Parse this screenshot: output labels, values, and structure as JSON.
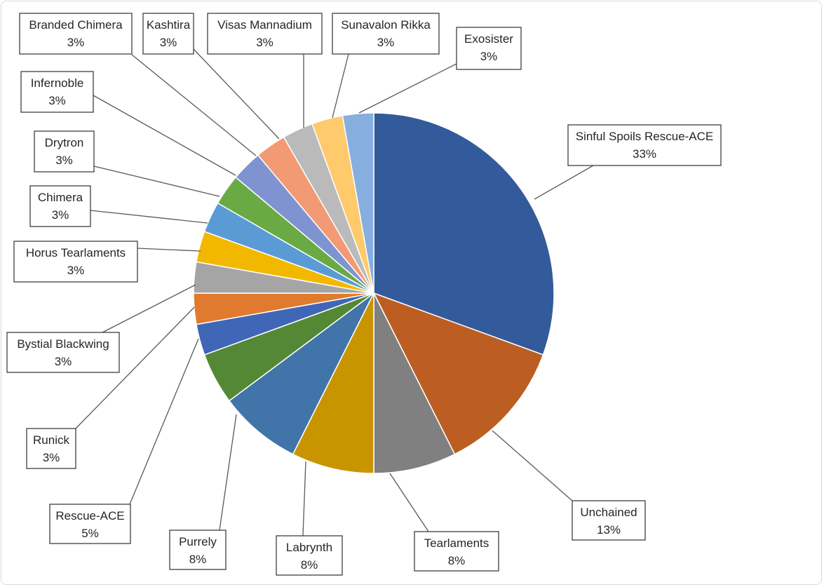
{
  "chart_data": {
    "type": "pie",
    "title": "",
    "start_angle_deg": 0,
    "direction": "clockwise",
    "slices": [
      {
        "name": "Sinful Spoils Rescue-ACE",
        "value": 33,
        "label": "33%",
        "color": "#335A9A"
      },
      {
        "name": "Unchained",
        "value": 13,
        "label": "13%",
        "color": "#BC5E22"
      },
      {
        "name": "Tearlaments",
        "value": 8,
        "label": "8%",
        "color": "#808080"
      },
      {
        "name": "Labrynth",
        "value": 8,
        "label": "8%",
        "color": "#C89500"
      },
      {
        "name": "Purrely",
        "value": 8,
        "label": "8%",
        "color": "#4174A8"
      },
      {
        "name": "Rescue-ACE",
        "value": 5,
        "label": "5%",
        "color": "#548835"
      },
      {
        "name": "Runick",
        "value": 3,
        "label": "3%",
        "color": "#4066B8"
      },
      {
        "name": "Bystial Blackwing",
        "value": 3,
        "label": "3%",
        "color": "#E07A2E"
      },
      {
        "name": "Horus Tearlaments",
        "value": 3,
        "label": "3%",
        "color": "#A5A5A5"
      },
      {
        "name": "Chimera",
        "value": 3,
        "label": "3%",
        "color": "#F2B800"
      },
      {
        "name": "Drytron",
        "value": 3,
        "label": "3%",
        "color": "#5B9BD5"
      },
      {
        "name": "Infernoble",
        "value": 3,
        "label": "3%",
        "color": "#6AAA45"
      },
      {
        "name": "Branded Chimera",
        "value": 3,
        "label": "3%",
        "color": "#7F93D0"
      },
      {
        "name": "Kashtira",
        "value": 3,
        "label": "3%",
        "color": "#F19A74"
      },
      {
        "name": "Visas Mannadium",
        "value": 3,
        "label": "3%",
        "color": "#BABABA"
      },
      {
        "name": "Sunavalon Rikka",
        "value": 3,
        "label": "3%",
        "color": "#FFCA6B"
      },
      {
        "name": "Exosister",
        "value": 3,
        "label": "3%",
        "color": "#86AEDE"
      }
    ]
  }
}
